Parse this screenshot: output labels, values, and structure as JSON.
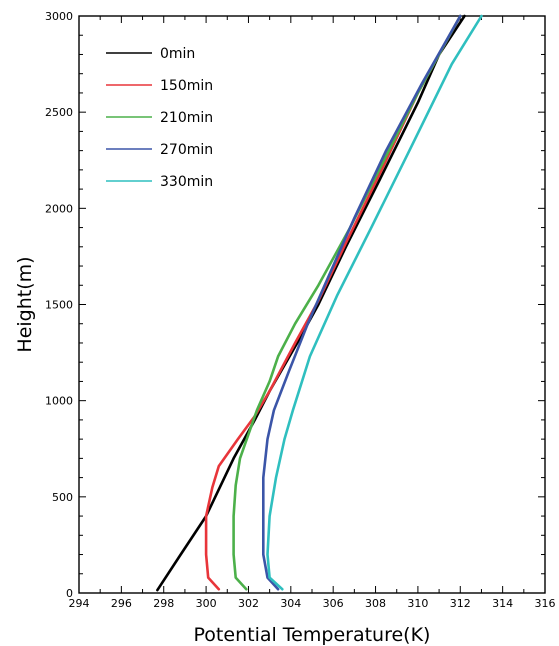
{
  "chart_data": {
    "type": "line",
    "xlabel": "Potential Temperature(K)",
    "ylabel": "Height(m)",
    "xlim": [
      294,
      316
    ],
    "ylim": [
      0,
      3000
    ],
    "x_ticks": [
      294,
      296,
      298,
      300,
      302,
      304,
      306,
      308,
      310,
      312,
      314,
      316
    ],
    "y_ticks": [
      0,
      500,
      1000,
      1500,
      2000,
      2500,
      3000
    ],
    "legend_position": "top-left",
    "grid": false,
    "series": [
      {
        "name": "0min",
        "color": "#000000",
        "points": [
          [
            297.7,
            15
          ],
          [
            298.8,
            200
          ],
          [
            300.0,
            400
          ],
          [
            301.3,
            700
          ],
          [
            302.3,
            900
          ],
          [
            303.0,
            1050
          ],
          [
            304.3,
            1300
          ],
          [
            305.3,
            1500
          ],
          [
            306.6,
            1800
          ],
          [
            308.2,
            2150
          ],
          [
            310.0,
            2550
          ],
          [
            311.0,
            2800
          ],
          [
            312.2,
            3000
          ]
        ]
      },
      {
        "name": "150min",
        "color": "#e8353a",
        "points": [
          [
            300.6,
            20
          ],
          [
            300.1,
            80
          ],
          [
            300.0,
            200
          ],
          [
            300.0,
            400
          ],
          [
            300.3,
            550
          ],
          [
            300.6,
            660
          ],
          [
            301.5,
            800
          ],
          [
            302.3,
            920
          ],
          [
            303.0,
            1050
          ],
          [
            304.2,
            1300
          ],
          [
            305.3,
            1520
          ],
          [
            306.6,
            1820
          ],
          [
            308.2,
            2180
          ],
          [
            310.0,
            2600
          ],
          [
            312.0,
            3000
          ]
        ]
      },
      {
        "name": "210min",
        "color": "#4cb04a",
        "points": [
          [
            301.9,
            20
          ],
          [
            301.4,
            80
          ],
          [
            301.3,
            200
          ],
          [
            301.3,
            400
          ],
          [
            301.4,
            560
          ],
          [
            301.6,
            700
          ],
          [
            302.4,
            950
          ],
          [
            303.0,
            1100
          ],
          [
            303.4,
            1230
          ],
          [
            304.2,
            1400
          ],
          [
            305.3,
            1600
          ],
          [
            306.8,
            1900
          ],
          [
            308.4,
            2250
          ],
          [
            310.0,
            2600
          ],
          [
            312.0,
            3000
          ]
        ]
      },
      {
        "name": "270min",
        "color": "#3b55a8",
        "points": [
          [
            303.4,
            20
          ],
          [
            302.9,
            80
          ],
          [
            302.7,
            200
          ],
          [
            302.7,
            400
          ],
          [
            302.7,
            600
          ],
          [
            302.9,
            800
          ],
          [
            303.2,
            950
          ],
          [
            303.9,
            1150
          ],
          [
            304.8,
            1400
          ],
          [
            305.8,
            1650
          ],
          [
            307.0,
            1950
          ],
          [
            308.5,
            2300
          ],
          [
            310.2,
            2650
          ],
          [
            312.0,
            3000
          ]
        ]
      },
      {
        "name": "330min",
        "color": "#2fbfbf",
        "points": [
          [
            303.6,
            20
          ],
          [
            303.0,
            80
          ],
          [
            302.9,
            200
          ],
          [
            303.0,
            400
          ],
          [
            303.3,
            600
          ],
          [
            303.7,
            800
          ],
          [
            304.1,
            950
          ],
          [
            304.9,
            1230
          ],
          [
            306.2,
            1550
          ],
          [
            307.8,
            1900
          ],
          [
            309.6,
            2300
          ],
          [
            311.6,
            2750
          ],
          [
            313.0,
            3000
          ]
        ]
      }
    ]
  }
}
